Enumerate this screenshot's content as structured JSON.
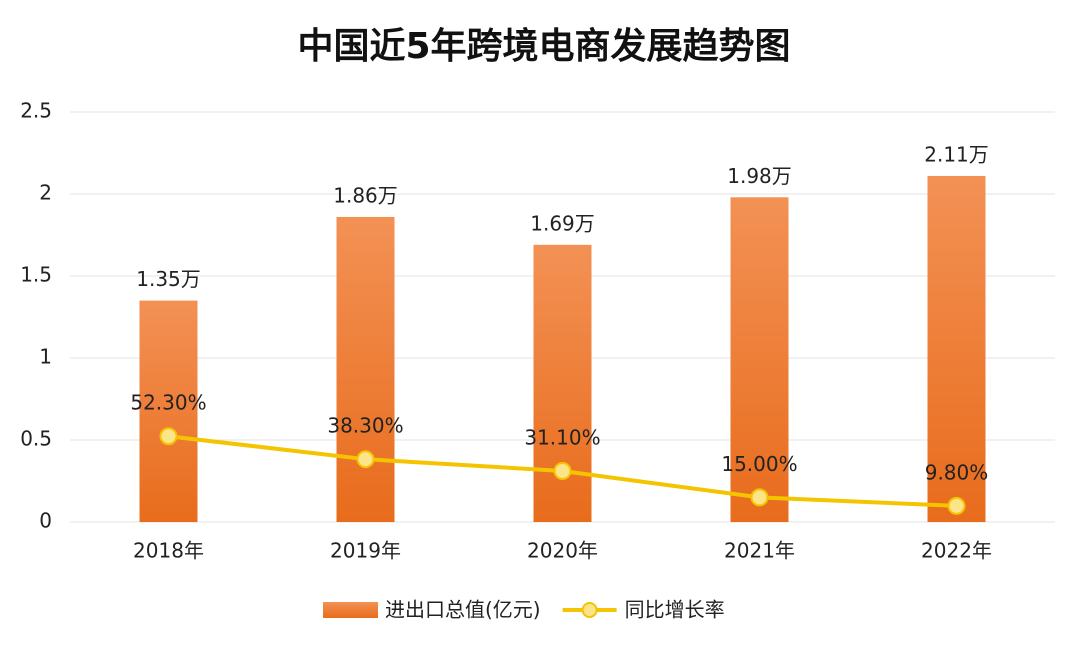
{
  "chart_data": {
    "type": "bar",
    "title": "中国近5年跨境电商发展趋势图",
    "categories": [
      "2018年",
      "2019年",
      "2020年",
      "2021年",
      "2022年"
    ],
    "series": [
      {
        "name": "进出口总值(亿元)",
        "type": "bar",
        "color": "#ec7a2e",
        "values": [
          1.35,
          1.86,
          1.69,
          1.98,
          2.11
        ],
        "value_labels": [
          "1.35万",
          "1.86万",
          "1.69万",
          "1.98万",
          "2.11万"
        ]
      },
      {
        "name": "同比增长率",
        "type": "line",
        "color": "#f5c400",
        "values": [
          0.523,
          0.383,
          0.311,
          0.15,
          0.098
        ],
        "value_labels": [
          "52.30%",
          "38.30%",
          "31.10%",
          "15.00%",
          "9.80%"
        ]
      }
    ],
    "ylim": [
      0,
      2.5
    ],
    "yticks": [
      0,
      0.5,
      1,
      1.5,
      2,
      2.5
    ],
    "grid": true
  }
}
